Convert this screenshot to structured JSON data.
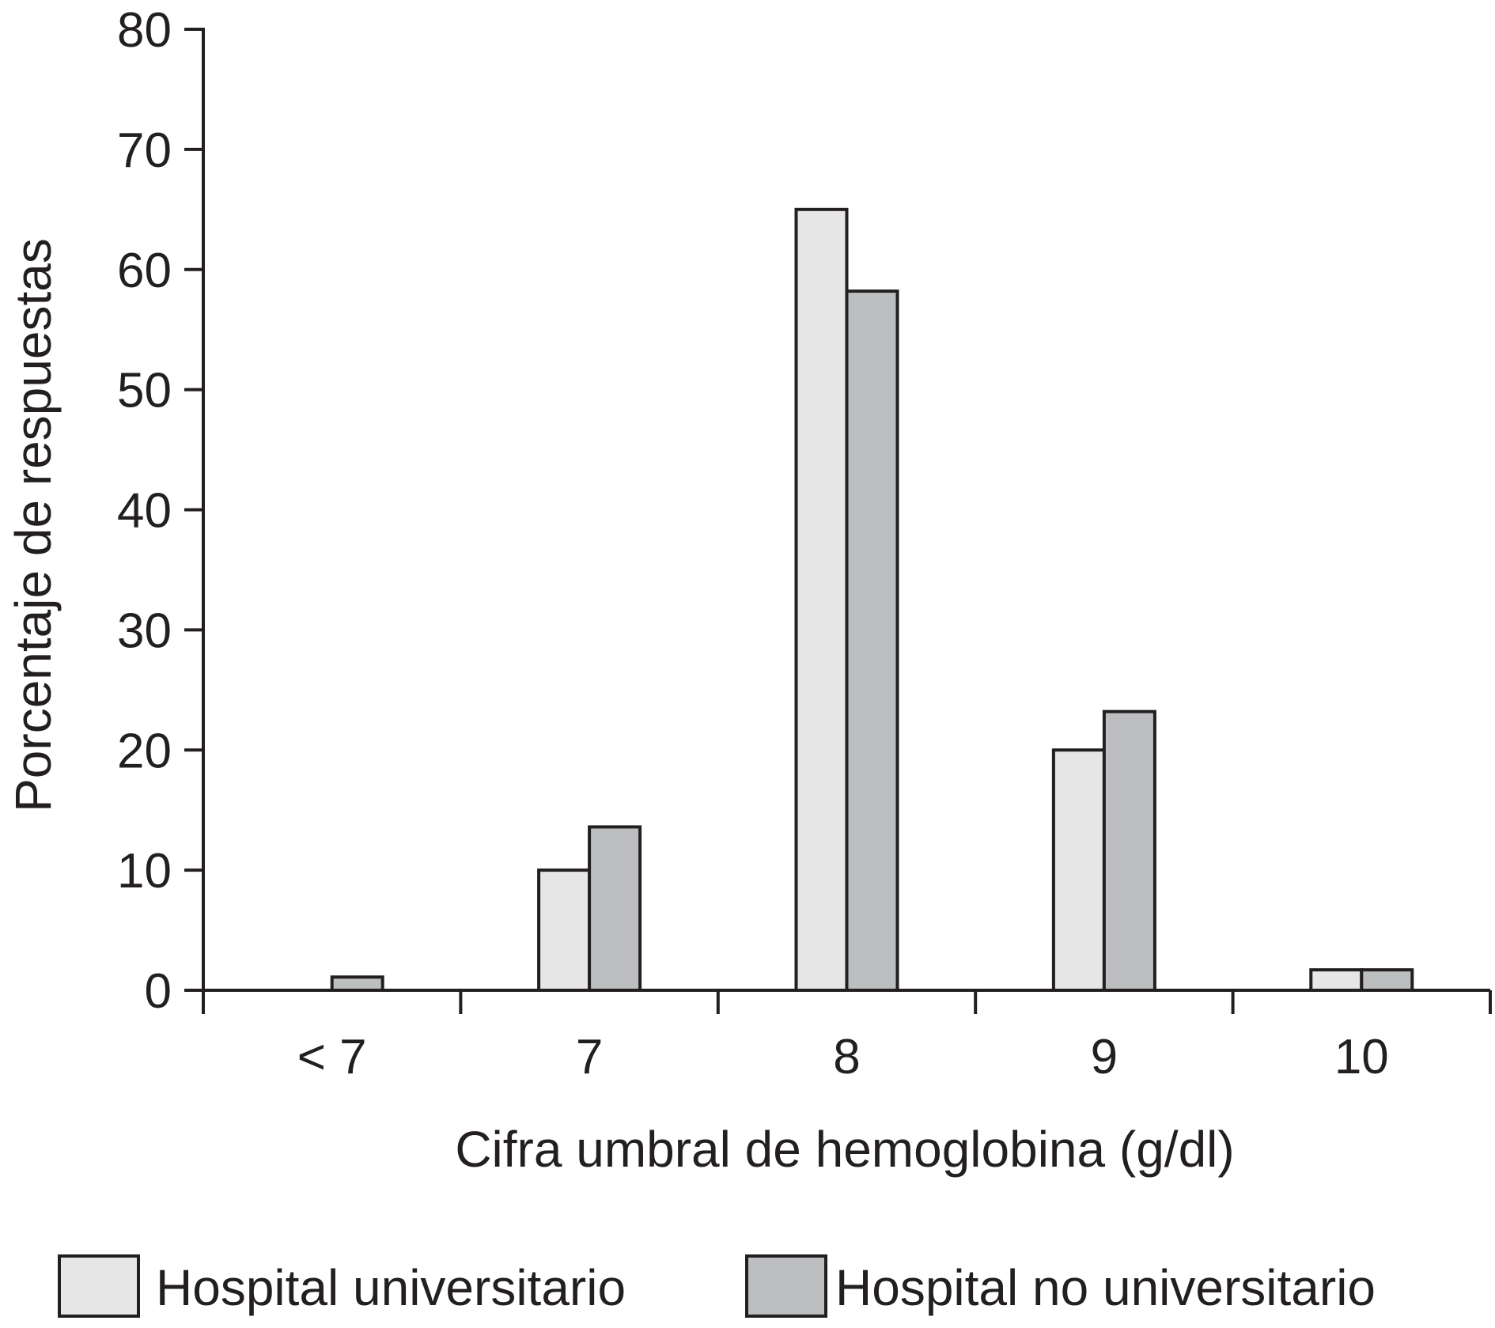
{
  "chart_data": {
    "type": "bar",
    "categories": [
      "< 7",
      "7",
      "8",
      "9",
      "10"
    ],
    "series": [
      {
        "name": "Hospital universitario",
        "values": [
          0,
          10,
          65,
          20,
          1.7
        ],
        "color": "#e6e6e6"
      },
      {
        "name": "Hospital no universitario",
        "values": [
          1.1,
          13.6,
          58.2,
          23.2,
          1.7
        ],
        "color": "#bcbec0"
      }
    ],
    "title": "",
    "xlabel": "Cifra umbral de hemoglobina (g/dl)",
    "ylabel": "Porcentaje de respuestas",
    "ylim": [
      0,
      80
    ],
    "yticks": [
      0,
      10,
      20,
      30,
      40,
      50,
      60,
      70,
      80
    ],
    "grid": false,
    "legend_position": "bottom"
  }
}
